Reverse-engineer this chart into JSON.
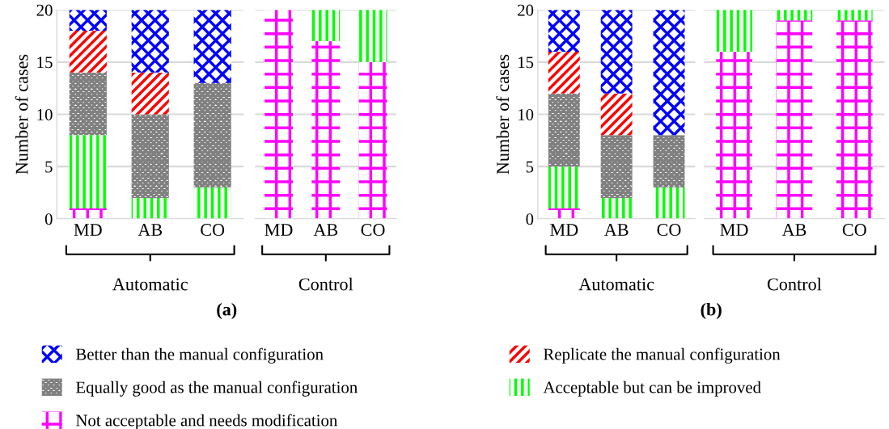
{
  "chart_data": [
    {
      "type": "bar",
      "stacked": true,
      "categories": [
        "MD",
        "AB",
        "CO"
      ],
      "xlabel": "Automatic",
      "ylabel": "Number of cases",
      "ylim": [
        0,
        20
      ],
      "yticks": [
        0,
        5,
        10,
        15,
        20
      ],
      "grid": "y",
      "legend": "bottom",
      "series": [
        {
          "name": "Not acceptable and needs modification",
          "color": "#ff00ff",
          "values": [
            1,
            0,
            0
          ]
        },
        {
          "name": "Acceptable but can be improved",
          "color": "#00ff00",
          "values": [
            7,
            2,
            3
          ]
        },
        {
          "name": "Equally good as the manual configuration",
          "color": "#808080",
          "values": [
            6,
            8,
            10
          ]
        },
        {
          "name": "Replicate the manual configuration",
          "color": "#ff0000",
          "values": [
            4,
            4,
            0
          ]
        },
        {
          "name": "Better than the manual configuration",
          "color": "#0000ff",
          "values": [
            2,
            6,
            7
          ]
        }
      ]
    },
    {
      "type": "bar",
      "stacked": true,
      "categories": [
        "MD",
        "AB",
        "CO"
      ],
      "xlabel": "Control",
      "ylim": [
        0,
        20
      ],
      "yticks": [
        {
          "value": 0,
          "label": null
        },
        {
          "value": 5,
          "label": null
        },
        {
          "value": 10,
          "label": null
        },
        {
          "value": 15,
          "label": null
        },
        {
          "value": 20,
          "label": null
        }
      ],
      "grid": "y",
      "tick_labels": "x",
      "annotations": [
        "(a)"
      ],
      "series": [
        {
          "name": "Not acceptable and needs modification",
          "color": "#ff00ff",
          "values": [
            20,
            17,
            15
          ]
        },
        {
          "name": "Acceptable but can be improved",
          "color": "#00ff00",
          "values": [
            0,
            3,
            5
          ]
        }
      ]
    },
    {
      "type": "bar",
      "stacked": true,
      "categories": [
        "MD",
        "AB",
        "CO"
      ],
      "xlabel": "Automatic",
      "ylabel": "Number of cases",
      "ylim": [
        0,
        20
      ],
      "yticks": [
        0,
        5,
        10,
        15,
        20
      ],
      "grid": "y",
      "series": [
        {
          "name": "Not acceptable and needs modification",
          "color": "#ff00ff",
          "values": [
            1,
            0,
            0
          ]
        },
        {
          "name": "Acceptable but can be improved",
          "color": "#00ff00",
          "values": [
            4,
            2,
            3
          ]
        },
        {
          "name": "Equally good as the manual configuration",
          "color": "#808080",
          "values": [
            7,
            6,
            5
          ]
        },
        {
          "name": "Replicate the manual configuration",
          "color": "#ff0000",
          "values": [
            4,
            4,
            0
          ]
        },
        {
          "name": "Better than the manual configuration",
          "color": "#0000ff",
          "values": [
            4,
            8,
            12
          ]
        }
      ]
    },
    {
      "type": "bar",
      "stacked": true,
      "categories": [
        "MD",
        "AB",
        "CO"
      ],
      "xlabel": "Control",
      "ylim": [
        0,
        20
      ],
      "yticks": [
        {
          "value": 0,
          "label": null
        },
        {
          "value": 5,
          "label": null
        },
        {
          "value": 10,
          "label": null
        },
        {
          "value": 15,
          "label": null
        },
        {
          "value": 20,
          "label": null
        }
      ],
      "grid": "y",
      "tick_labels": "x",
      "annotations": [
        "(b)"
      ],
      "series": [
        {
          "name": "Not acceptable and needs modification",
          "color": "#ff00ff",
          "values": [
            16,
            19,
            19
          ]
        },
        {
          "name": "Acceptable but can be improved",
          "color": "#00ff00",
          "values": [
            4,
            1,
            1
          ]
        }
      ]
    }
  ]
}
